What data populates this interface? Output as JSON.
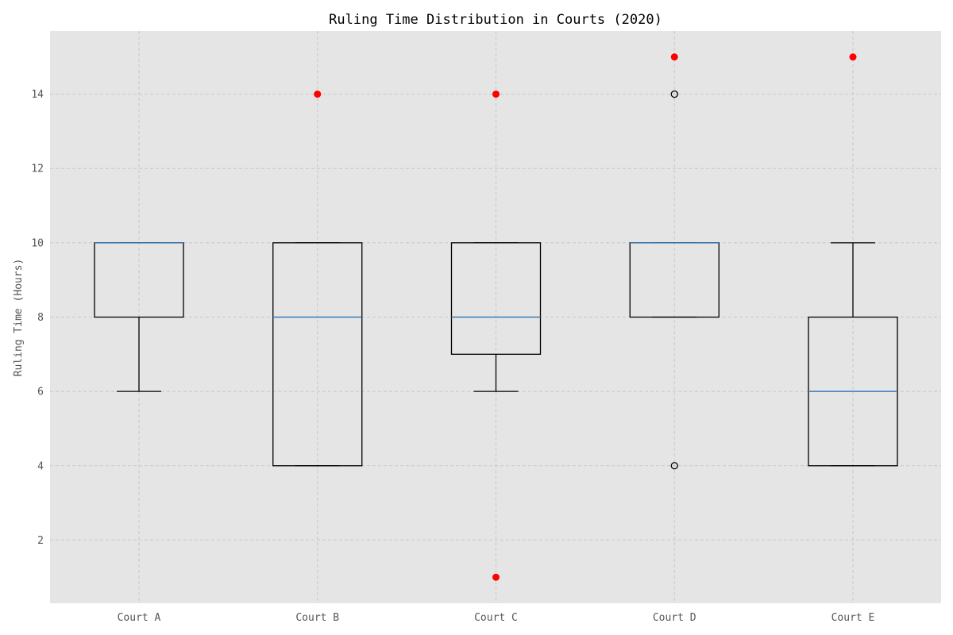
{
  "chart_data": {
    "type": "box",
    "title": "Ruling Time Distribution in Courts (2020)",
    "xlabel": "",
    "ylabel": "Ruling Time (Hours)",
    "ylim": [
      0.3,
      15.7
    ],
    "yticks": [
      2,
      4,
      6,
      8,
      10,
      12,
      14
    ],
    "grid": true,
    "categories": [
      "Court A",
      "Court B",
      "Court C",
      "Court D",
      "Court E"
    ],
    "boxes": [
      {
        "category": "Court A",
        "whisker_low": 6,
        "q1": 8,
        "median": 10,
        "q3": 10,
        "whisker_high": 10,
        "fliers": [],
        "extra_points": []
      },
      {
        "category": "Court B",
        "whisker_low": 4,
        "q1": 4,
        "median": 8,
        "q3": 10,
        "whisker_high": 10,
        "fliers": [],
        "extra_points": [
          14
        ]
      },
      {
        "category": "Court C",
        "whisker_low": 6,
        "q1": 7,
        "median": 8,
        "q3": 10,
        "whisker_high": 10,
        "fliers": [],
        "extra_points": [
          14,
          1
        ]
      },
      {
        "category": "Court D",
        "whisker_low": 8,
        "q1": 8,
        "median": 10,
        "q3": 10,
        "whisker_high": 10,
        "fliers": [
          14,
          4
        ],
        "extra_points": [
          15
        ]
      },
      {
        "category": "Court E",
        "whisker_low": 4,
        "q1": 4,
        "median": 6,
        "q3": 8,
        "whisker_high": 10,
        "fliers": [],
        "extra_points": [
          15
        ]
      }
    ],
    "colors": {
      "plot_bg": "#e5e5e5",
      "grid": "#c8c8c8",
      "box": "#000000",
      "median": "#3b7cb8",
      "extra_point": "#ff0000",
      "flier_edge": "#000000"
    }
  }
}
